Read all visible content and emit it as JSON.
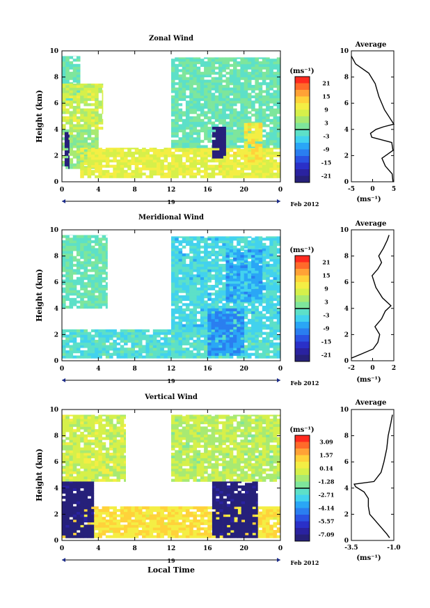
{
  "figure": {
    "date_label": "Feb 2012",
    "day_label": "19",
    "xlabel_bottom": "Local Time"
  },
  "colorbar_unit": "(ms⁻¹)",
  "avg_unit": "(ms⁻¹)",
  "panels": [
    {
      "id": "zonal",
      "title": "Zonal Wind",
      "ylabel": "Height (km)",
      "x_ticks": [
        "0",
        "4",
        "8",
        "12",
        "16",
        "20",
        "0"
      ],
      "y_ticks": [
        "0",
        "2",
        "4",
        "6",
        "8",
        "10"
      ],
      "colorbar": {
        "labels": [
          "21",
          "15",
          "9",
          "3",
          "-3",
          "-9",
          "-15",
          "-21"
        ],
        "colors": [
          "#ff2a1f",
          "#ff6a2a",
          "#ffa236",
          "#ffd23a",
          "#f4ee44",
          "#d6f04a",
          "#a8ea72",
          "#7ee69c",
          "#5de0c8",
          "#42d2ee",
          "#2aa6f6",
          "#2a7ef0",
          "#2a52e2",
          "#2a30c8",
          "#2a22a0",
          "#26207a"
        ]
      },
      "average": {
        "title": "Average",
        "x_ticks": [
          "-5",
          "0",
          "5"
        ],
        "y_ticks": [
          "0",
          "2",
          "4",
          "6",
          "8",
          "10"
        ]
      }
    },
    {
      "id": "meridional",
      "title": "Meridional Wind",
      "ylabel": "Height (km)",
      "x_ticks": [
        "0",
        "4",
        "8",
        "12",
        "16",
        "20",
        "0"
      ],
      "y_ticks": [
        "0",
        "2",
        "4",
        "6",
        "8",
        "10"
      ],
      "colorbar": {
        "labels": [
          "21",
          "15",
          "9",
          "3",
          "-3",
          "-9",
          "-15",
          "-21"
        ],
        "colors": [
          "#ff2a1f",
          "#ff6a2a",
          "#ffa236",
          "#ffd23a",
          "#f4ee44",
          "#d6f04a",
          "#a8ea72",
          "#7ee69c",
          "#5de0c8",
          "#42d2ee",
          "#2aa6f6",
          "#2a7ef0",
          "#2a52e2",
          "#2a30c8",
          "#2a22a0",
          "#26207a"
        ]
      },
      "average": {
        "title": "Average",
        "x_ticks": [
          "-2",
          "0",
          "2"
        ],
        "y_ticks": [
          "0",
          "2",
          "4",
          "6",
          "8",
          "10"
        ]
      }
    },
    {
      "id": "vertical",
      "title": "Vertical Wind",
      "ylabel": "Height (km)",
      "x_ticks": [
        "0",
        "4",
        "8",
        "12",
        "16",
        "20",
        "0"
      ],
      "y_ticks": [
        "0",
        "2",
        "4",
        "6",
        "8",
        "10"
      ],
      "colorbar": {
        "labels": [
          "3.09",
          "1.57",
          "0.14",
          "-1.28",
          "-2.71",
          "-4.14",
          "-5.57",
          "-7.09"
        ],
        "colors": [
          "#ff2a1f",
          "#ff6a2a",
          "#ffa236",
          "#ffd23a",
          "#f4ee44",
          "#d6f04a",
          "#a8ea72",
          "#7ee69c",
          "#5de0c8",
          "#42d2ee",
          "#2aa6f6",
          "#2a7ef0",
          "#2a52e2",
          "#2a30c8",
          "#2a22a0",
          "#26207a"
        ]
      },
      "average": {
        "title": "Average",
        "x_ticks": [
          "-3.5",
          "-1.0"
        ],
        "y_ticks": [
          "0",
          "2",
          "4",
          "6",
          "8",
          "10"
        ]
      }
    }
  ],
  "chart_data": [
    {
      "type": "heatmap",
      "title": "Zonal Wind",
      "ylabel": "Height (km)",
      "xlim": [
        0,
        24
      ],
      "ylim": [
        0,
        10
      ],
      "color_range": [
        -21,
        21
      ],
      "regions": [
        {
          "x": [
            0,
            2.0
          ],
          "y": [
            6.2,
            9.6
          ],
          "value": 0
        },
        {
          "x": [
            0,
            4.5
          ],
          "y": [
            4.0,
            7.5
          ],
          "value": 6
        },
        {
          "x": [
            0,
            4.0
          ],
          "y": [
            1.0,
            4.0
          ],
          "value": 3
        },
        {
          "x": [
            0.3,
            0.8
          ],
          "y": [
            1.0,
            3.8
          ],
          "value": -21
        },
        {
          "x": [
            2,
            24
          ],
          "y": [
            0.3,
            2.6
          ],
          "value": 8
        },
        {
          "x": [
            12,
            24
          ],
          "y": [
            2.6,
            9.5
          ],
          "value": 0
        },
        {
          "x": [
            16.5,
            18.0
          ],
          "y": [
            1.8,
            4.2
          ],
          "value": -21
        },
        {
          "x": [
            20,
            22
          ],
          "y": [
            1.5,
            4.5
          ],
          "value": 10
        }
      ]
    },
    {
      "type": "heatmap",
      "title": "Meridional Wind",
      "ylabel": "Height (km)",
      "xlim": [
        0,
        24
      ],
      "ylim": [
        0,
        10
      ],
      "color_range": [
        -21,
        21
      ],
      "regions": [
        {
          "x": [
            0,
            5.0
          ],
          "y": [
            4.0,
            9.6
          ],
          "value": 0
        },
        {
          "x": [
            0,
            24
          ],
          "y": [
            0.2,
            2.4
          ],
          "value": -2
        },
        {
          "x": [
            12,
            24
          ],
          "y": [
            2.4,
            9.5
          ],
          "value": -3
        },
        {
          "x": [
            16,
            20
          ],
          "y": [
            0.4,
            4.0
          ],
          "value": -8
        },
        {
          "x": [
            18,
            22
          ],
          "y": [
            4.5,
            8.5
          ],
          "value": -6
        }
      ]
    },
    {
      "type": "heatmap",
      "title": "Vertical Wind",
      "ylabel": "Height (km)",
      "xlabel": "Local Time",
      "xlim": [
        0,
        24
      ],
      "ylim": [
        0,
        10
      ],
      "color_range": [
        -7.09,
        3.09
      ],
      "regions": [
        {
          "x": [
            0,
            7
          ],
          "y": [
            4.5,
            9.6
          ],
          "value": -0.5
        },
        {
          "x": [
            0,
            24
          ],
          "y": [
            0.2,
            2.6
          ],
          "value": 0.5
        },
        {
          "x": [
            0,
            3.5
          ],
          "y": [
            0.2,
            4.5
          ],
          "value": -7.0
        },
        {
          "x": [
            12,
            24
          ],
          "y": [
            4.5,
            9.6
          ],
          "value": -0.8
        },
        {
          "x": [
            16.5,
            21.5
          ],
          "y": [
            0.2,
            4.5
          ],
          "value": -7.0
        }
      ]
    },
    {
      "type": "line",
      "title": "Average",
      "xlabel": "(ms⁻¹)",
      "xlim": [
        -5,
        5
      ],
      "ylim": [
        0,
        10
      ],
      "series": [
        {
          "x": [
            4.8,
            4.6,
            3.0,
            2.2,
            4.8,
            4.5,
            -0.2,
            -0.5,
            0.8,
            2.6,
            5.0,
            2.8,
            1.5,
            0.6,
            -0.9,
            -4.0,
            -5.0
          ],
          "y": [
            0,
            0.6,
            1.2,
            1.8,
            2.4,
            3.0,
            3.4,
            3.7,
            4.0,
            4.2,
            4.4,
            5.5,
            6.5,
            7.5,
            8.3,
            9.0,
            9.6
          ]
        }
      ]
    },
    {
      "type": "line",
      "title": "Average",
      "xlabel": "(ms⁻¹)",
      "xlim": [
        -2,
        2.5
      ],
      "ylim": [
        0,
        10
      ],
      "series": [
        {
          "x": [
            -2.0,
            -1.0,
            0.3,
            0.8,
            1.0,
            0.5,
            1.2,
            1.6,
            2.2,
            1.3,
            0.6,
            0.2,
            0.8,
            1.2,
            0.9,
            1.4,
            1.8,
            2.0
          ],
          "y": [
            0.2,
            0.5,
            0.9,
            1.4,
            2.0,
            2.6,
            3.2,
            3.8,
            4.2,
            4.8,
            5.6,
            6.5,
            7.0,
            7.5,
            8.0,
            8.6,
            9.2,
            9.6
          ]
        }
      ]
    },
    {
      "type": "line",
      "title": "Average",
      "xlabel": "(ms⁻¹)",
      "xlim": [
        -3.8,
        -0.8
      ],
      "ylim": [
        0,
        10
      ],
      "series": [
        {
          "x": [
            -1.1,
            -1.3,
            -1.7,
            -2.1,
            -2.5,
            -2.6,
            -2.6,
            -2.9,
            -3.5,
            -3.6,
            -2.2,
            -1.7,
            -1.5,
            -1.3,
            -1.2,
            -1.0,
            -0.9
          ],
          "y": [
            0.2,
            0.5,
            1.0,
            1.5,
            2.0,
            2.6,
            3.2,
            3.7,
            4.1,
            4.3,
            4.5,
            5.2,
            6.0,
            7.0,
            8.0,
            9.0,
            9.6
          ]
        }
      ]
    }
  ]
}
